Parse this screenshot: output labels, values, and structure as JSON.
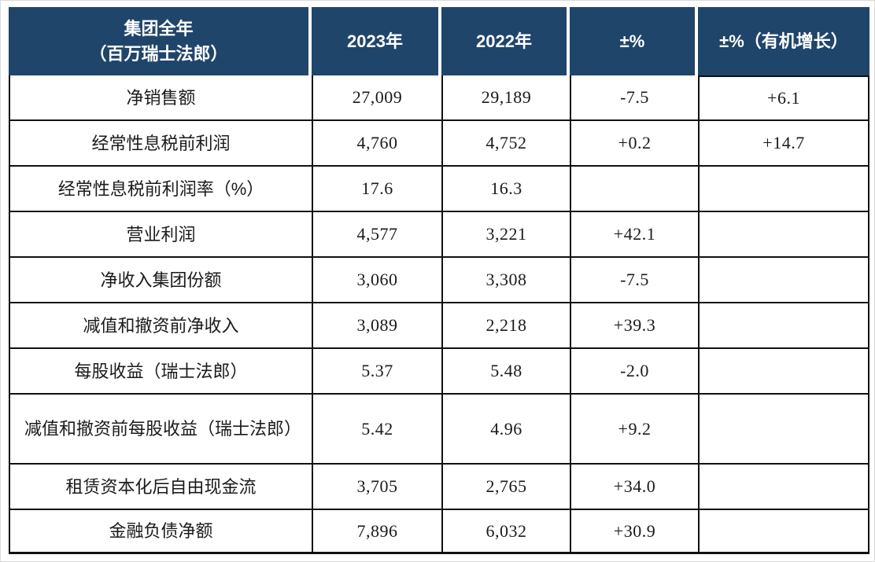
{
  "colors": {
    "header_bg": "#20456B",
    "header_text": "#FFFFFF",
    "border": "#111111",
    "body_text": "#1A1A1A"
  },
  "table": {
    "header": {
      "group_title": "集团全年",
      "group_subtitle": "（百万瑞士法郎）",
      "col_2023": "2023年",
      "col_2022": "2022年",
      "col_change": "±%",
      "col_organic": "±%（有机增长）"
    },
    "rows": [
      {
        "label": "净销售额",
        "y2023": "27,009",
        "y2022": "29,189",
        "change": "-7.5",
        "organic": "+6.1"
      },
      {
        "label": "经常性息税前利润",
        "y2023": "4,760",
        "y2022": "4,752",
        "change": "+0.2",
        "organic": "+14.7"
      },
      {
        "label": "经常性息税前利润率（%）",
        "y2023": "17.6",
        "y2022": "16.3",
        "change": "",
        "organic": ""
      },
      {
        "label": "营业利润",
        "y2023": "4,577",
        "y2022": "3,221",
        "change": "+42.1",
        "organic": ""
      },
      {
        "label": "净收入集团份额",
        "y2023": "3,060",
        "y2022": "3,308",
        "change": "-7.5",
        "organic": ""
      },
      {
        "label": "减值和撤资前净收入",
        "y2023": "3,089",
        "y2022": "2,218",
        "change": "+39.3",
        "organic": ""
      },
      {
        "label": "每股收益（瑞士法郎）",
        "y2023": "5.37",
        "y2022": "5.48",
        "change": "-2.0",
        "organic": ""
      },
      {
        "label": "减值和撤资前每股收益（瑞士法郎）",
        "y2023": "5.42",
        "y2022": "4.96",
        "change": "+9.2",
        "organic": ""
      },
      {
        "label": "租赁资本化后自由现金流",
        "y2023": "3,705",
        "y2022": "2,765",
        "change": "+34.0",
        "organic": ""
      },
      {
        "label": "金融负债净额",
        "y2023": "7,896",
        "y2022": "6,032",
        "change": "+30.9",
        "organic": ""
      }
    ]
  },
  "chart_data": {
    "type": "table",
    "title": "集团全年（百万瑞士法郎）",
    "columns": [
      "集团全年（百万瑞士法郎）",
      "2023年",
      "2022年",
      "±%",
      "±%（有机增长）"
    ],
    "rows": [
      [
        "净销售额",
        "27,009",
        "29,189",
        "-7.5",
        "+6.1"
      ],
      [
        "经常性息税前利润",
        "4,760",
        "4,752",
        "+0.2",
        "+14.7"
      ],
      [
        "经常性息税前利润率（%）",
        "17.6",
        "16.3",
        "",
        ""
      ],
      [
        "营业利润",
        "4,577",
        "3,221",
        "+42.1",
        ""
      ],
      [
        "净收入集团份额",
        "3,060",
        "3,308",
        "-7.5",
        ""
      ],
      [
        "减值和撤资前净收入",
        "3,089",
        "2,218",
        "+39.3",
        ""
      ],
      [
        "每股收益（瑞士法郎）",
        "5.37",
        "5.48",
        "-2.0",
        ""
      ],
      [
        "减值和撤资前每股收益（瑞士法郎）",
        "5.42",
        "4.96",
        "+9.2",
        ""
      ],
      [
        "租赁资本化后自由现金流",
        "3,705",
        "2,765",
        "+34.0",
        ""
      ],
      [
        "金融负债净额",
        "7,896",
        "6,032",
        "+30.9",
        ""
      ]
    ]
  }
}
